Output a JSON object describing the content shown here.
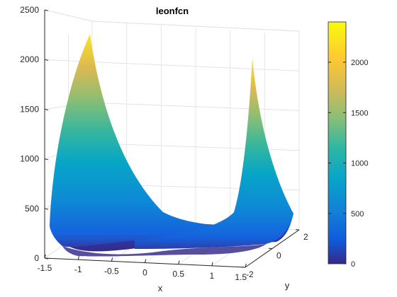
{
  "chart_data": {
    "type": "surface3d",
    "function": "leonfcn",
    "title": "leonfcn",
    "xlabel": "x",
    "ylabel": "y",
    "zlabel": "",
    "x_range": [
      -1.5,
      1.5
    ],
    "y_range": [
      -2,
      2
    ],
    "z_range": [
      0,
      2500
    ],
    "x_ticks": [
      "-1.5",
      "-1",
      "-0.5",
      "0",
      "0.5",
      "1",
      "1.5"
    ],
    "y_ticks": [
      "-2",
      "0",
      "2"
    ],
    "z_ticks": [
      "0",
      "500",
      "1000",
      "1500",
      "2000",
      "2500"
    ],
    "colormap": "parula",
    "colorbar": {
      "range": [
        0,
        2400
      ],
      "ticks": [
        "0",
        "500",
        "1000",
        "1500",
        "2000"
      ],
      "placement": "right"
    },
    "grid": true,
    "box": true,
    "peaks": [
      {
        "x": -1.5,
        "y": -2,
        "z": 2500
      },
      {
        "x": 1.5,
        "y": 1.5,
        "z": 2100
      }
    ],
    "colors": {
      "parula_low": "#352a87",
      "parula_mid": "#1bb3b2",
      "parula_high": "#f9fb0e"
    }
  }
}
